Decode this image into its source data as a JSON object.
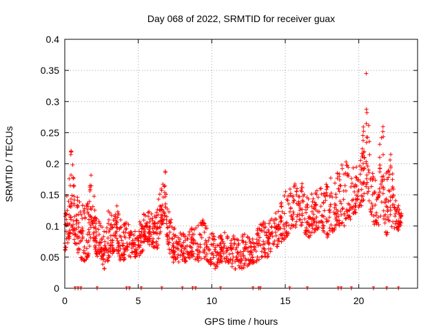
{
  "chart_data": {
    "type": "scatter",
    "title": "Day 068 of 2022, SRMTID for receiver guax",
    "xlabel": "GPS time / hours",
    "ylabel": "SRMTID / TECUs",
    "xlim": [
      0,
      24
    ],
    "ylim": [
      0,
      0.4
    ],
    "xticks": [
      0,
      5,
      10,
      15,
      20
    ],
    "xtick_labels": [
      "0",
      "5",
      "10",
      "15",
      "20"
    ],
    "yticks": [
      0,
      0.05,
      0.1,
      0.15,
      0.2,
      0.25,
      0.3,
      0.35,
      0.4
    ],
    "ytick_labels": [
      "0",
      "0.05",
      "0.1",
      "0.15",
      "0.2",
      "0.25",
      "0.3",
      "0.35",
      "0.4"
    ],
    "grid": true,
    "marker": "+",
    "color": "#ff0000",
    "series": [
      {
        "name": "SRMTID",
        "envelope": [
          [
            0.0,
            0.06,
            0.14
          ],
          [
            0.25,
            0.07,
            0.16
          ],
          [
            0.45,
            0.1,
            0.23
          ],
          [
            0.7,
            0.07,
            0.17
          ],
          [
            1.0,
            0.05,
            0.15
          ],
          [
            1.3,
            0.04,
            0.13
          ],
          [
            1.6,
            0.05,
            0.14
          ],
          [
            1.85,
            0.1,
            0.21
          ],
          [
            2.1,
            0.05,
            0.12
          ],
          [
            2.4,
            0.05,
            0.11
          ],
          [
            2.7,
            0.03,
            0.09
          ],
          [
            3.0,
            0.04,
            0.13
          ],
          [
            3.3,
            0.06,
            0.12
          ],
          [
            3.6,
            0.05,
            0.14
          ],
          [
            3.9,
            0.04,
            0.1
          ],
          [
            4.2,
            0.05,
            0.11
          ],
          [
            4.6,
            0.05,
            0.09
          ],
          [
            5.0,
            0.05,
            0.1
          ],
          [
            5.3,
            0.06,
            0.12
          ],
          [
            5.6,
            0.07,
            0.13
          ],
          [
            5.9,
            0.07,
            0.12
          ],
          [
            6.2,
            0.06,
            0.12
          ],
          [
            6.5,
            0.07,
            0.16
          ],
          [
            6.8,
            0.1,
            0.2
          ],
          [
            7.1,
            0.06,
            0.13
          ],
          [
            7.4,
            0.04,
            0.1
          ],
          [
            7.8,
            0.04,
            0.09
          ],
          [
            8.2,
            0.04,
            0.09
          ],
          [
            8.6,
            0.05,
            0.1
          ],
          [
            9.0,
            0.04,
            0.1
          ],
          [
            9.4,
            0.05,
            0.11
          ],
          [
            9.8,
            0.04,
            0.09
          ],
          [
            10.2,
            0.03,
            0.09
          ],
          [
            10.6,
            0.04,
            0.09
          ],
          [
            11.0,
            0.04,
            0.09
          ],
          [
            11.4,
            0.03,
            0.09
          ],
          [
            11.8,
            0.03,
            0.08
          ],
          [
            12.2,
            0.03,
            0.09
          ],
          [
            12.6,
            0.04,
            0.08
          ],
          [
            13.0,
            0.04,
            0.09
          ],
          [
            13.4,
            0.05,
            0.11
          ],
          [
            13.8,
            0.05,
            0.1
          ],
          [
            14.2,
            0.06,
            0.12
          ],
          [
            14.6,
            0.07,
            0.13
          ],
          [
            15.0,
            0.08,
            0.16
          ],
          [
            15.4,
            0.09,
            0.16
          ],
          [
            15.8,
            0.1,
            0.18
          ],
          [
            16.2,
            0.09,
            0.17
          ],
          [
            16.6,
            0.08,
            0.15
          ],
          [
            17.0,
            0.09,
            0.16
          ],
          [
            17.4,
            0.1,
            0.18
          ],
          [
            17.8,
            0.08,
            0.17
          ],
          [
            18.2,
            0.09,
            0.18
          ],
          [
            18.6,
            0.1,
            0.19
          ],
          [
            19.0,
            0.1,
            0.21
          ],
          [
            19.4,
            0.11,
            0.19
          ],
          [
            19.8,
            0.12,
            0.2
          ],
          [
            20.2,
            0.13,
            0.21
          ],
          [
            20.5,
            0.16,
            0.36
          ],
          [
            20.8,
            0.12,
            0.2
          ],
          [
            21.2,
            0.09,
            0.17
          ],
          [
            21.6,
            0.12,
            0.28
          ],
          [
            21.9,
            0.08,
            0.18
          ],
          [
            22.2,
            0.1,
            0.22
          ],
          [
            22.6,
            0.09,
            0.14
          ],
          [
            22.9,
            0.1,
            0.12
          ]
        ]
      }
    ],
    "data_gap_marks_x": [
      0.7,
      0.9,
      1.1,
      2.2,
      4.2,
      4.4,
      5.2,
      6.6,
      8.0,
      8.7,
      8.9,
      10.6,
      12.8,
      13.2,
      13.3,
      15.3,
      16.5,
      18.6,
      18.8,
      19.5,
      21.0,
      21.9,
      22.7
    ]
  }
}
